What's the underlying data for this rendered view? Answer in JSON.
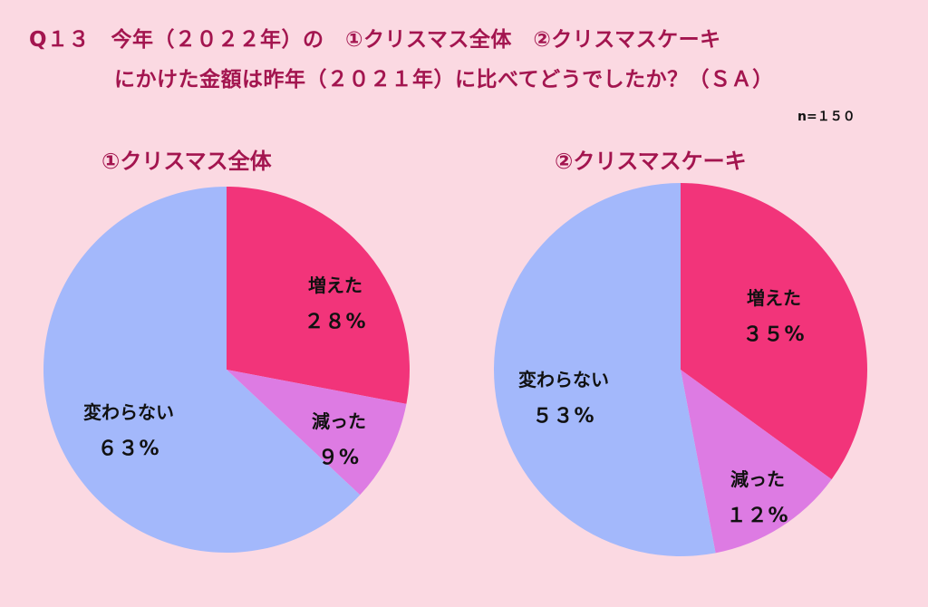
{
  "title_line1": "Q１３　今年（２０２２年）の　①クリスマス全体　②クリスマスケーキ",
  "title_line2": "にかけた金額は昨年（２０２１年）に比べてどうでしたか？（ＳＡ）",
  "sample_note": "n=１５０",
  "chart_data": [
    {
      "type": "pie",
      "title": "①クリスマス全体",
      "slices": [
        {
          "label": "増えた",
          "value": 28,
          "value_label": "２８%",
          "color": "#f2347a"
        },
        {
          "label": "減った",
          "value": 9,
          "value_label": "９%",
          "color": "#dd7be3"
        },
        {
          "label": "変わらない",
          "value": 63,
          "value_label": "６３%",
          "color": "#a3b8fb"
        }
      ]
    },
    {
      "type": "pie",
      "title": "②クリスマスケーキ",
      "slices": [
        {
          "label": "増えた",
          "value": 35,
          "value_label": "３５%",
          "color": "#f2347a"
        },
        {
          "label": "減った",
          "value": 12,
          "value_label": "１２%",
          "color": "#dd7be3"
        },
        {
          "label": "変わらない",
          "value": 53,
          "value_label": "５３%",
          "color": "#a3b8fb"
        }
      ]
    }
  ]
}
